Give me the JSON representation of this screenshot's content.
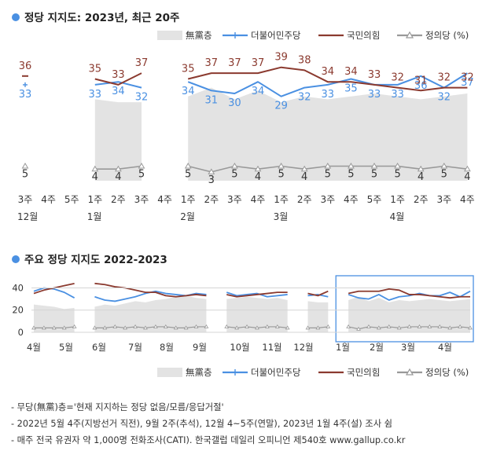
{
  "chart_data": [
    {
      "type": "line",
      "title": "정당 지지도: 2023년, 최근 20주",
      "legend": [
        "無黨층",
        "더불어민주당",
        "국민의힘",
        "정의당 (%)"
      ],
      "legend_position": "top-right",
      "categories": [
        "3주",
        "4주",
        "5주",
        "1주",
        "2주",
        "3주",
        "4주",
        "1주",
        "2주",
        "3주",
        "4주",
        "1주",
        "2주",
        "3주",
        "4주",
        "5주",
        "1주",
        "2주",
        "3주",
        "4주"
      ],
      "month_labels": [
        {
          "label": "12월",
          "index": 0
        },
        {
          "label": "1월",
          "index": 3
        },
        {
          "label": "2월",
          "index": 7
        },
        {
          "label": "3월",
          "index": 11
        },
        {
          "label": "4월",
          "index": 16
        }
      ],
      "ylim": [
        0,
        45
      ],
      "series": [
        {
          "name": "無黨층",
          "color": "#e3e3e3",
          "style": "area",
          "values": [
            null,
            null,
            null,
            28,
            27,
            27,
            null,
            29,
            32,
            28,
            31,
            27,
            29,
            28,
            29,
            30,
            29,
            28,
            29,
            30
          ]
        },
        {
          "name": "더불어민주당",
          "color": "#4a90e2",
          "values": [
            33,
            null,
            null,
            33,
            34,
            32,
            null,
            34,
            31,
            30,
            34,
            29,
            32,
            33,
            35,
            33,
            33,
            36,
            32,
            37
          ]
        },
        {
          "name": "국민의힘",
          "color": "#8b3a2f",
          "values": [
            36,
            null,
            null,
            35,
            33,
            37,
            null,
            35,
            37,
            37,
            37,
            39,
            38,
            34,
            34,
            33,
            32,
            31,
            32,
            32
          ]
        },
        {
          "name": "정의당",
          "color": "#999999",
          "values": [
            5,
            null,
            null,
            4,
            4,
            5,
            null,
            5,
            3,
            5,
            4,
            5,
            4,
            5,
            5,
            5,
            5,
            4,
            5,
            4
          ]
        }
      ]
    },
    {
      "type": "line",
      "title": "주요 정당 지지도 2022-2023",
      "legend": [
        "無黨층",
        "더불어민주당",
        "국민의힘",
        "정의당 (%)"
      ],
      "legend_position": "bottom-right",
      "y_ticks": [
        "0",
        "20",
        "40"
      ],
      "ylim": [
        0,
        46
      ],
      "x_labels": [
        "4월",
        "5월",
        "6월",
        "7월",
        "8월",
        "9월",
        "10월",
        "11월",
        "12월",
        "1월",
        "2월",
        "3월",
        "4월"
      ],
      "highlight_box": "1월–4월",
      "series": [
        {
          "name": "無黨층",
          "style": "area",
          "color": "#e3e3e3",
          "values": [
            25,
            24,
            23,
            21,
            22,
            null,
            23,
            25,
            24,
            26,
            28,
            27,
            29,
            30,
            32,
            33,
            31,
            30,
            null,
            30,
            31,
            32,
            31,
            30,
            31,
            29,
            null,
            28,
            27,
            27,
            null,
            29,
            32,
            28,
            31,
            27,
            29,
            28,
            29,
            30,
            29,
            28,
            29,
            30
          ]
        },
        {
          "name": "더불어민주당",
          "color": "#4a90e2",
          "values": [
            37,
            40,
            39,
            36,
            31,
            null,
            32,
            29,
            28,
            30,
            32,
            35,
            37,
            35,
            34,
            33,
            35,
            34,
            null,
            36,
            33,
            34,
            35,
            32,
            33,
            34,
            null,
            33,
            34,
            32,
            null,
            34,
            31,
            30,
            34,
            29,
            32,
            33,
            35,
            33,
            33,
            36,
            32,
            37
          ]
        },
        {
          "name": "국민의힘",
          "color": "#8b3a2f",
          "values": [
            35,
            38,
            40,
            42,
            44,
            null,
            44,
            43,
            41,
            40,
            38,
            36,
            36,
            33,
            32,
            33,
            34,
            33,
            null,
            34,
            32,
            33,
            34,
            35,
            36,
            36,
            null,
            35,
            33,
            37,
            null,
            35,
            37,
            37,
            37,
            39,
            38,
            34,
            34,
            33,
            32,
            31,
            32,
            32
          ]
        },
        {
          "name": "정의당",
          "color": "#999999",
          "values": [
            4,
            4,
            4,
            4,
            5,
            null,
            4,
            4,
            5,
            4,
            5,
            4,
            5,
            5,
            4,
            4,
            5,
            5,
            null,
            5,
            4,
            5,
            4,
            5,
            5,
            4,
            null,
            4,
            4,
            5,
            null,
            5,
            3,
            5,
            4,
            5,
            4,
            5,
            5,
            5,
            5,
            4,
            5,
            4
          ]
        }
      ]
    }
  ],
  "notes": [
    "- 무당(無黨)층='현재 지지하는 정당 없음/모름/응답거절'",
    "- 2022년 5월 4주(지방선거 직전), 9월 2주(추석), 12월 4~5주(연말), 2023년 1월 4주(설) 조사 쉼",
    "- 매주 전국 유권자 약 1,000명 전화조사(CATI). 한국갤럽 데일리 오피니언 제540호 www.gallup.co.kr"
  ]
}
